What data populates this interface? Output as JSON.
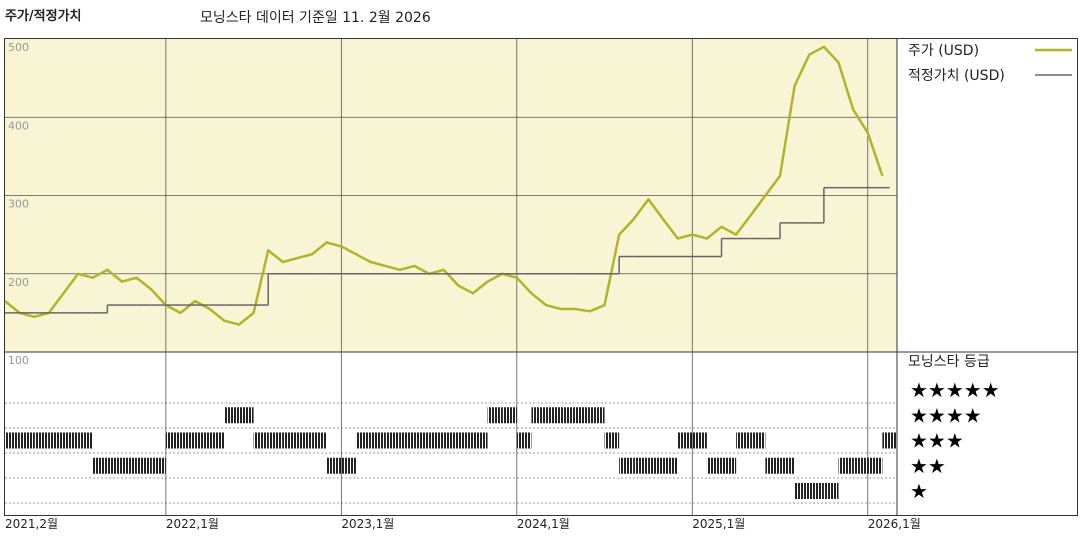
{
  "chart_data": {
    "type": "line",
    "title": "주가/적정가치",
    "subtitle": "모닝스타 데이터 기준일 11. 2월 2026",
    "x": [
      "2021-02",
      "2021-03",
      "2021-04",
      "2021-05",
      "2021-06",
      "2021-07",
      "2021-08",
      "2021-09",
      "2021-10",
      "2021-11",
      "2021-12",
      "2022-01",
      "2022-02",
      "2022-03",
      "2022-04",
      "2022-05",
      "2022-06",
      "2022-07",
      "2022-08",
      "2022-09",
      "2022-10",
      "2022-11",
      "2022-12",
      "2023-01",
      "2023-02",
      "2023-03",
      "2023-04",
      "2023-05",
      "2023-06",
      "2023-07",
      "2023-08",
      "2023-09",
      "2023-10",
      "2023-11",
      "2023-12",
      "2024-01",
      "2024-02",
      "2024-03",
      "2024-04",
      "2024-05",
      "2024-06",
      "2024-07",
      "2024-08",
      "2024-09",
      "2024-10",
      "2024-11",
      "2024-12",
      "2025-01",
      "2025-02",
      "2025-03",
      "2025-04",
      "2025-05",
      "2025-06",
      "2025-07",
      "2025-08",
      "2025-09",
      "2025-10",
      "2025-11",
      "2025-12",
      "2026-01",
      "2026-02"
    ],
    "series": [
      {
        "name": "주가 (USD)",
        "color": "#b3b32a",
        "values": [
          165,
          150,
          145,
          150,
          175,
          200,
          195,
          205,
          190,
          195,
          180,
          160,
          150,
          165,
          155,
          140,
          135,
          150,
          230,
          215,
          220,
          225,
          240,
          235,
          225,
          215,
          210,
          205,
          210,
          200,
          205,
          185,
          175,
          190,
          200,
          195,
          175,
          160,
          155,
          155,
          152,
          160,
          250,
          270,
          295,
          270,
          245,
          250,
          245,
          260,
          250,
          275,
          300,
          325,
          440,
          480,
          490,
          470,
          410,
          380,
          325
        ]
      },
      {
        "name": "적정가치 (USD)",
        "color": "#666666",
        "step": true,
        "values": [
          150,
          150,
          150,
          150,
          150,
          150,
          150,
          160,
          160,
          160,
          160,
          160,
          160,
          160,
          160,
          160,
          160,
          160,
          200,
          200,
          200,
          200,
          200,
          200,
          200,
          200,
          200,
          200,
          200,
          200,
          200,
          200,
          200,
          200,
          200,
          200,
          200,
          200,
          200,
          200,
          200,
          200,
          222,
          222,
          222,
          222,
          222,
          222,
          222,
          245,
          245,
          245,
          245,
          265,
          265,
          265,
          310,
          310,
          310,
          310,
          310
        ]
      }
    ],
    "ratings_title": "모닝스타 등급",
    "ratings_levels": [
      "★",
      "★★",
      "★★★",
      "★★★★",
      "★★★★★"
    ],
    "ratings": [
      3,
      3,
      3,
      3,
      3,
      3,
      2,
      2,
      2,
      2,
      2,
      3,
      3,
      3,
      3,
      4,
      4,
      3,
      3,
      3,
      3,
      3,
      2,
      2,
      3,
      3,
      3,
      3,
      3,
      3,
      3,
      3,
      3,
      4,
      4,
      3,
      4,
      4,
      4,
      4,
      4,
      3,
      2,
      2,
      2,
      2,
      3,
      3,
      2,
      2,
      3,
      3,
      2,
      2,
      1,
      1,
      1,
      2,
      2,
      2,
      3
    ],
    "xlim": [
      "2021-02",
      "2026-03"
    ],
    "xticks": [
      {
        "value": "2021-02",
        "label": "2021,2월"
      },
      {
        "value": "2022-01",
        "label": "2022,1월"
      },
      {
        "value": "2023-01",
        "label": "2023,1월"
      },
      {
        "value": "2024-01",
        "label": "2024,1월"
      },
      {
        "value": "2025-01",
        "label": "2025,1월"
      },
      {
        "value": "2026-01",
        "label": "2026,1월"
      }
    ],
    "ylim": [
      100,
      500
    ],
    "yticks": [
      100,
      200,
      300,
      400,
      500
    ],
    "grid": true,
    "legend": "right"
  }
}
